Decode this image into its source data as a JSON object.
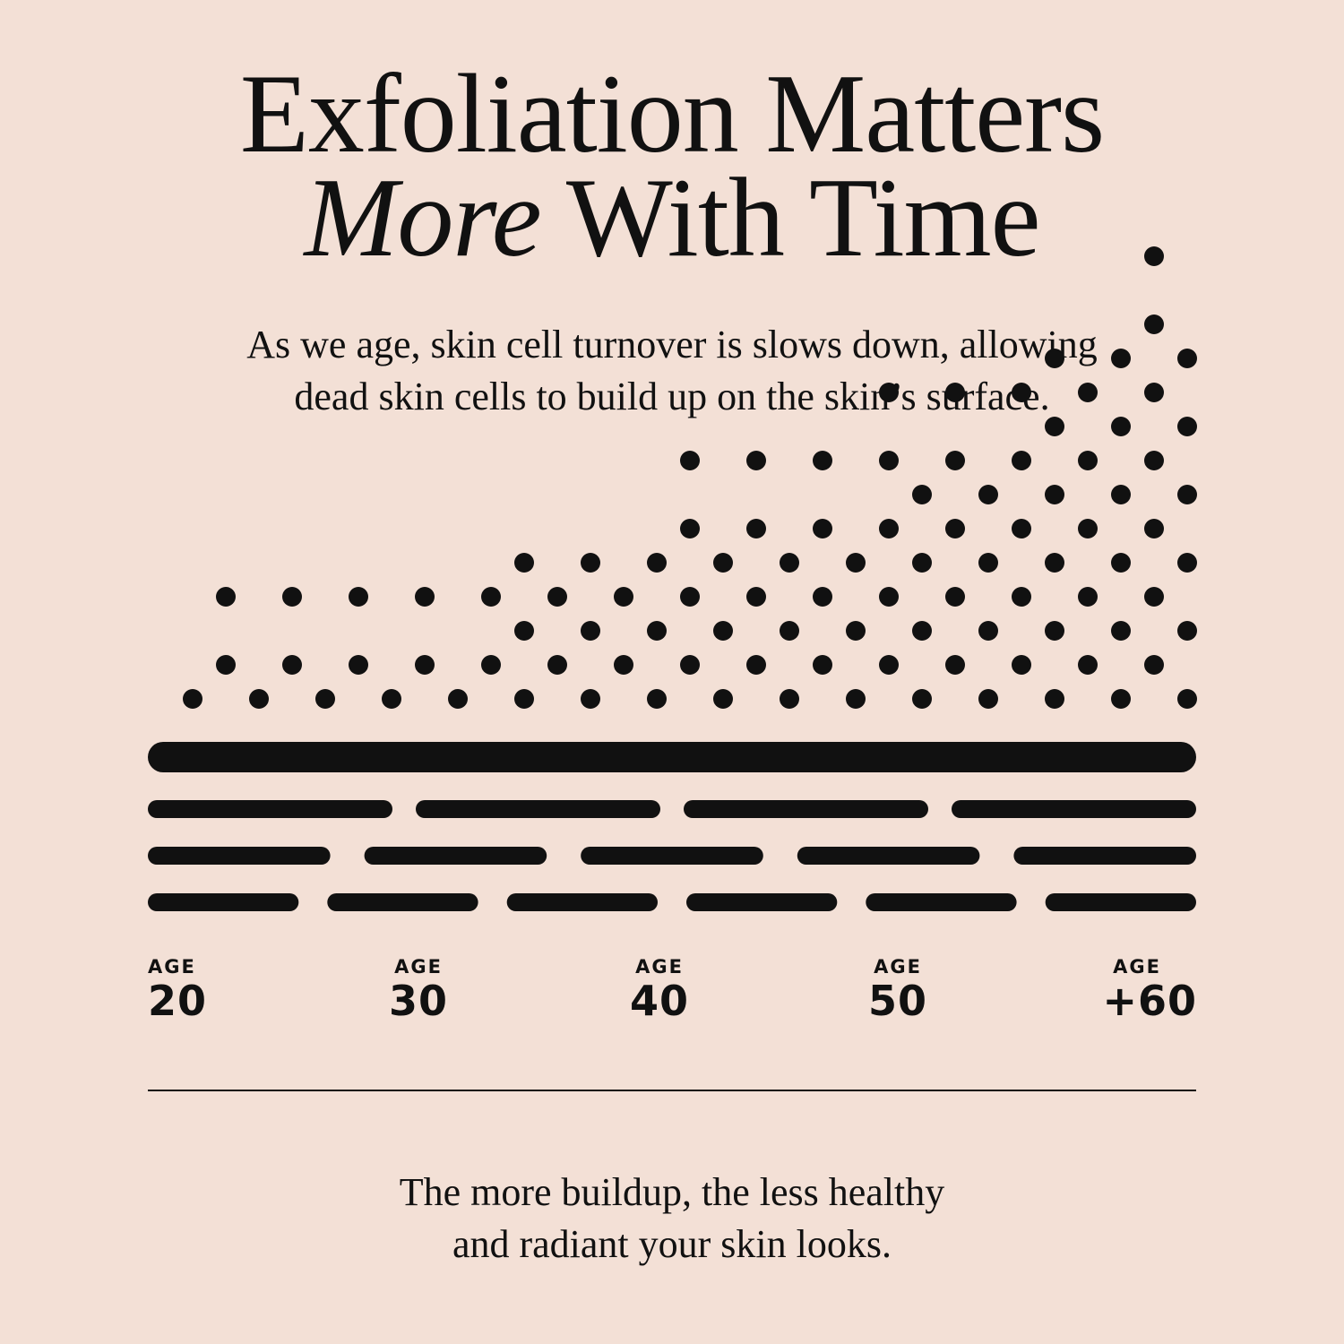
{
  "heading": {
    "line1": "Exfoliation Matters",
    "line2_italic": "More",
    "line2_rest": " With Time"
  },
  "intro": {
    "line1": "As we age, skin cell turnover is slows down, allowing",
    "line2": "dead skin cells to build up on the skin’s surface."
  },
  "ages": [
    {
      "label": "AGE",
      "value": "20"
    },
    {
      "label": "AGE",
      "value": "30"
    },
    {
      "label": "AGE",
      "value": "40"
    },
    {
      "label": "AGE",
      "value": "50"
    },
    {
      "label": "AGE",
      "value": "+60"
    }
  ],
  "outro": {
    "line1": "The more buildup, the less healthy",
    "line2": "and radiant your skin looks."
  },
  "diagram": {
    "dead_cell_column_heights": [
      1,
      2,
      1,
      2,
      1,
      2,
      1,
      2,
      1,
      2,
      3,
      2,
      3,
      2,
      3,
      4,
      3,
      4,
      3,
      4,
      3,
      5,
      4,
      5,
      4,
      5,
      6,
      5,
      6,
      7,
      6
    ],
    "skin_layer_segment_counts": [
      1,
      4,
      5,
      6
    ]
  },
  "colors": {
    "background": "#f3e0d6",
    "ink": "#111111"
  }
}
